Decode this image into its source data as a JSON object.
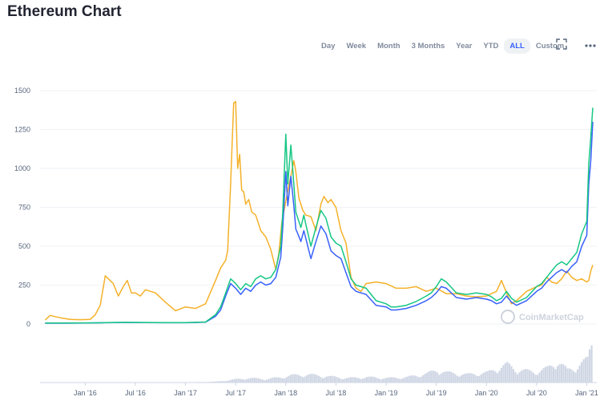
{
  "header": {
    "title": "Ethereum Chart"
  },
  "toolbar": {
    "ranges": [
      "Day",
      "Week",
      "Month",
      "3 Months",
      "Year",
      "YTD",
      "ALL",
      "Custom"
    ],
    "active": "ALL",
    "fullscreen_icon": "fullscreen-icon",
    "more_icon": "more-icon"
  },
  "watermark": "CoinMarketCap",
  "chart_data": {
    "type": "line",
    "y_ticks": [
      0,
      250,
      500,
      750,
      1000,
      1250,
      1500
    ],
    "ylim": [
      0,
      1500
    ],
    "x_ticks": [
      "Jan '16",
      "Jul '16",
      "Jan '17",
      "Jul '17",
      "Jan '18",
      "Jul '18",
      "Jan '19",
      "Jul '19",
      "Jan '20",
      "Jul '20",
      "Jan '21"
    ],
    "grid": true,
    "series": [
      {
        "color": "#f5b12a",
        "x": [
          2015.6,
          2015.65,
          2015.75,
          2015.85,
          2015.95,
          2016.05,
          2016.1,
          2016.15,
          2016.2,
          2016.28,
          2016.33,
          2016.38,
          2016.42,
          2016.46,
          2016.5,
          2016.55,
          2016.6,
          2016.7,
          2016.8,
          2016.9,
          2017.0,
          2017.1,
          2017.2,
          2017.3,
          2017.35,
          2017.4,
          2017.42,
          2017.45,
          2017.48,
          2017.5,
          2017.52,
          2017.54,
          2017.56,
          2017.58,
          2017.6,
          2017.63,
          2017.66,
          2017.7,
          2017.75,
          2017.8,
          2017.85,
          2017.9,
          2017.93,
          2017.96,
          2018.0,
          2018.03,
          2018.05,
          2018.08,
          2018.1,
          2018.13,
          2018.17,
          2018.2,
          2018.25,
          2018.3,
          2018.35,
          2018.38,
          2018.42,
          2018.45,
          2018.5,
          2018.55,
          2018.6,
          2018.65,
          2018.7,
          2018.75,
          2018.8,
          2018.9,
          2019.0,
          2019.1,
          2019.2,
          2019.3,
          2019.4,
          2019.5,
          2019.6,
          2019.7,
          2019.8,
          2019.9,
          2020.0,
          2020.1,
          2020.15,
          2020.2,
          2020.25,
          2020.3,
          2020.4,
          2020.5,
          2020.55,
          2020.6,
          2020.65,
          2020.7,
          2020.75,
          2020.8,
          2020.85,
          2020.9,
          2020.95,
          2021.0,
          2021.02,
          2021.04,
          2021.06
        ],
        "y": [
          25,
          55,
          40,
          30,
          28,
          30,
          60,
          120,
          310,
          260,
          180,
          240,
          280,
          200,
          200,
          180,
          220,
          200,
          140,
          85,
          110,
          100,
          130,
          280,
          360,
          410,
          470,
          900,
          1420,
          1430,
          1000,
          1090,
          860,
          850,
          770,
          800,
          720,
          700,
          600,
          560,
          480,
          350,
          450,
          650,
          790,
          890,
          950,
          1050,
          980,
          810,
          730,
          700,
          690,
          600,
          770,
          820,
          780,
          800,
          750,
          600,
          520,
          300,
          230,
          210,
          260,
          270,
          260,
          230,
          230,
          240,
          210,
          230,
          195,
          195,
          180,
          175,
          180,
          210,
          280,
          200,
          130,
          150,
          210,
          240,
          250,
          300,
          270,
          260,
          290,
          340,
          300,
          280,
          290,
          270,
          280,
          340,
          380
        ]
      },
      {
        "color": "#3861fb",
        "x": [
          2015.6,
          2015.8,
          2016.0,
          2016.2,
          2016.4,
          2016.6,
          2016.8,
          2017.0,
          2017.1,
          2017.2,
          2017.3,
          2017.35,
          2017.4,
          2017.45,
          2017.5,
          2017.55,
          2017.6,
          2017.65,
          2017.7,
          2017.75,
          2017.8,
          2017.85,
          2017.9,
          2017.95,
          2017.97,
          2018.0,
          2018.02,
          2018.05,
          2018.08,
          2018.1,
          2018.12,
          2018.15,
          2018.18,
          2018.2,
          2018.25,
          2018.3,
          2018.35,
          2018.4,
          2018.45,
          2018.5,
          2018.55,
          2018.6,
          2018.65,
          2018.7,
          2018.8,
          2018.9,
          2019.0,
          2019.05,
          2019.1,
          2019.2,
          2019.3,
          2019.4,
          2019.45,
          2019.5,
          2019.55,
          2019.6,
          2019.7,
          2019.8,
          2019.9,
          2020.0,
          2020.05,
          2020.1,
          2020.15,
          2020.2,
          2020.25,
          2020.3,
          2020.4,
          2020.5,
          2020.55,
          2020.6,
          2020.65,
          2020.7,
          2020.75,
          2020.8,
          2020.85,
          2020.9,
          2020.95,
          2021.0,
          2021.02,
          2021.04,
          2021.06
        ],
        "y": [
          5,
          5,
          6,
          8,
          10,
          9,
          8,
          8,
          10,
          12,
          50,
          90,
          180,
          260,
          230,
          190,
          230,
          210,
          250,
          270,
          250,
          260,
          300,
          430,
          620,
          980,
          760,
          950,
          760,
          610,
          580,
          530,
          600,
          550,
          420,
          530,
          630,
          580,
          470,
          440,
          420,
          330,
          240,
          210,
          190,
          120,
          110,
          90,
          90,
          100,
          120,
          150,
          170,
          200,
          240,
          230,
          170,
          160,
          170,
          160,
          150,
          130,
          140,
          180,
          140,
          120,
          150,
          210,
          230,
          270,
          300,
          330,
          350,
          330,
          370,
          400,
          500,
          570,
          900,
          1050,
          1300
        ]
      },
      {
        "color": "#16c784",
        "x": [
          2015.6,
          2015.8,
          2016.0,
          2016.2,
          2016.4,
          2016.6,
          2016.8,
          2017.0,
          2017.1,
          2017.2,
          2017.3,
          2017.35,
          2017.4,
          2017.45,
          2017.5,
          2017.55,
          2017.6,
          2017.65,
          2017.7,
          2017.75,
          2017.8,
          2017.85,
          2017.9,
          2017.95,
          2017.97,
          2018.0,
          2018.02,
          2018.05,
          2018.08,
          2018.1,
          2018.12,
          2018.15,
          2018.18,
          2018.2,
          2018.25,
          2018.3,
          2018.35,
          2018.4,
          2018.45,
          2018.5,
          2018.55,
          2018.6,
          2018.65,
          2018.7,
          2018.8,
          2018.9,
          2019.0,
          2019.05,
          2019.1,
          2019.2,
          2019.3,
          2019.4,
          2019.45,
          2019.5,
          2019.55,
          2019.6,
          2019.7,
          2019.8,
          2019.9,
          2020.0,
          2020.05,
          2020.1,
          2020.15,
          2020.2,
          2020.25,
          2020.3,
          2020.4,
          2020.5,
          2020.55,
          2020.6,
          2020.65,
          2020.7,
          2020.75,
          2020.8,
          2020.85,
          2020.9,
          2020.95,
          2021.0,
          2021.02,
          2021.04,
          2021.06
        ],
        "y": [
          6,
          6,
          7,
          9,
          11,
          10,
          9,
          9,
          11,
          13,
          60,
          110,
          200,
          290,
          260,
          220,
          260,
          240,
          290,
          310,
          290,
          300,
          350,
          500,
          720,
          1220,
          900,
          1150,
          900,
          720,
          680,
          620,
          700,
          640,
          500,
          620,
          730,
          680,
          560,
          520,
          500,
          400,
          290,
          250,
          230,
          150,
          130,
          110,
          110,
          120,
          145,
          180,
          200,
          240,
          290,
          270,
          200,
          190,
          200,
          190,
          175,
          150,
          165,
          210,
          165,
          140,
          170,
          240,
          260,
          300,
          340,
          380,
          400,
          380,
          420,
          460,
          580,
          660,
          1030,
          1200,
          1390
        ]
      }
    ],
    "volume": {
      "color": "#cfd6e4",
      "x": [
        2015.6,
        2016.0,
        2016.5,
        2017.0,
        2017.3,
        2017.45,
        2017.6,
        2017.8,
        2017.95,
        2018.05,
        2018.2,
        2018.4,
        2018.6,
        2018.8,
        2019.0,
        2019.2,
        2019.4,
        2019.5,
        2019.6,
        2019.8,
        2020.0,
        2020.1,
        2020.2,
        2020.3,
        2020.5,
        2020.6,
        2020.7,
        2020.8,
        2020.9,
        2021.0,
        2021.05
      ],
      "v": [
        0,
        0,
        0,
        1,
        5,
        15,
        25,
        20,
        30,
        40,
        45,
        35,
        25,
        30,
        25,
        30,
        50,
        70,
        55,
        45,
        55,
        80,
        100,
        70,
        60,
        80,
        120,
        70,
        90,
        130,
        260
      ]
    }
  }
}
